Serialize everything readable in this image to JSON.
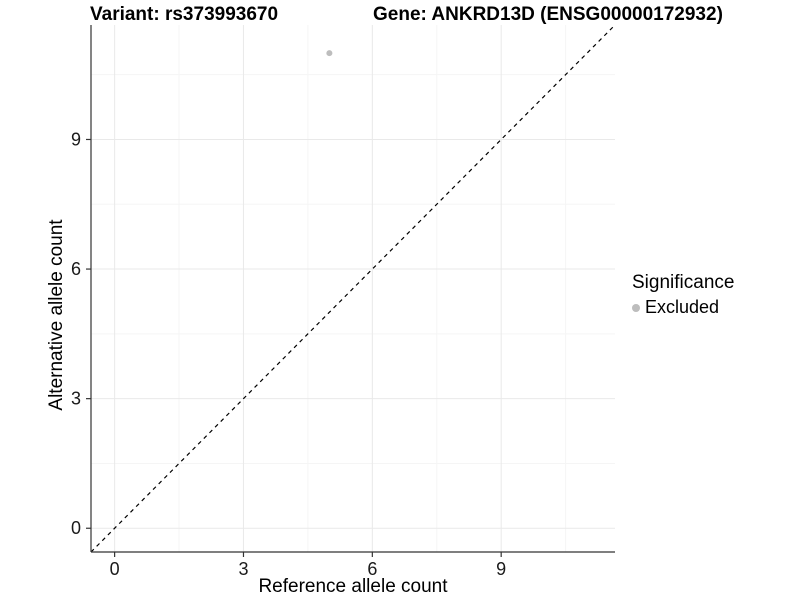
{
  "header": {
    "title_variant": "Variant: rs373993670",
    "title_gene": "Gene: ANKRD13D (ENSG00000172932)"
  },
  "axes": {
    "x_title": "Reference allele count",
    "y_title": "Alternative allele count",
    "x_tick_labels": [
      "0",
      "3",
      "6",
      "9"
    ],
    "y_tick_labels": [
      "0",
      "3",
      "6",
      "9"
    ]
  },
  "legend": {
    "title": "Significance",
    "items": [
      {
        "label": "Excluded",
        "color": "#bdbdbd"
      }
    ]
  },
  "colors": {
    "point": "#bdbdbd",
    "grid_major": "#e9e9e9",
    "grid_minor": "#f5f5f5",
    "axis_line": "#333333",
    "tick_label": "#1a1a1a",
    "reference_line": "#000000"
  },
  "chart_data": {
    "type": "scatter",
    "title_left": "Variant: rs373993670",
    "title_right": "Gene: ANKRD13D (ENSG00000172932)",
    "xlabel": "Reference allele count",
    "ylabel": "Alternative allele count",
    "xlim": [
      -0.55,
      11.65
    ],
    "ylim": [
      -0.55,
      11.65
    ],
    "x_ticks": [
      0,
      3,
      6,
      9
    ],
    "y_ticks": [
      0,
      3,
      6,
      9
    ],
    "x_minor_ticks": [
      1.5,
      4.5,
      7.5,
      10.5
    ],
    "y_minor_ticks": [
      1.5,
      4.5,
      7.5,
      10.5
    ],
    "grid": true,
    "legend_position": "right",
    "series": [
      {
        "name": "Excluded",
        "color": "#bdbdbd",
        "point_radius": 3,
        "points": [
          {
            "x": 5,
            "y": 11
          }
        ]
      }
    ],
    "reference_line": {
      "type": "identity",
      "equation": "y = x",
      "style": "dashed",
      "color": "#000000"
    }
  }
}
